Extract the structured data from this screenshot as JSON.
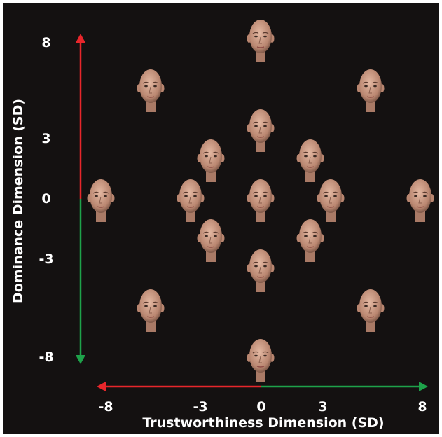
{
  "axes": {
    "y_title": "Dominance Dimension (SD)",
    "x_title": "Trustworthiness Dimension (SD)",
    "y_ticks": [
      "8",
      "3",
      "0",
      "-3",
      "-8"
    ],
    "x_ticks": [
      "-8",
      "-3",
      "0",
      "3",
      "8"
    ]
  },
  "colors": {
    "background": "#141111",
    "positive_arrow": "#e8262b",
    "negative_arrow": "#1ea24a",
    "text": "#ffffff"
  },
  "faces": [
    {
      "trust": 0,
      "dominance": 8
    },
    {
      "trust": -5.5,
      "dominance": 5.5
    },
    {
      "trust": 5.5,
      "dominance": 5.5
    },
    {
      "trust": 0,
      "dominance": 3.5
    },
    {
      "trust": -2.5,
      "dominance": 2
    },
    {
      "trust": 2.5,
      "dominance": 2
    },
    {
      "trust": -8,
      "dominance": 0
    },
    {
      "trust": -3.5,
      "dominance": 0
    },
    {
      "trust": 0,
      "dominance": 0
    },
    {
      "trust": 3.5,
      "dominance": 0
    },
    {
      "trust": 8,
      "dominance": 0
    },
    {
      "trust": -2.5,
      "dominance": -2
    },
    {
      "trust": 2.5,
      "dominance": -2
    },
    {
      "trust": 0,
      "dominance": -3.5
    },
    {
      "trust": -5.5,
      "dominance": -5.5
    },
    {
      "trust": 5.5,
      "dominance": -5.5
    },
    {
      "trust": 0,
      "dominance": -8
    }
  ]
}
